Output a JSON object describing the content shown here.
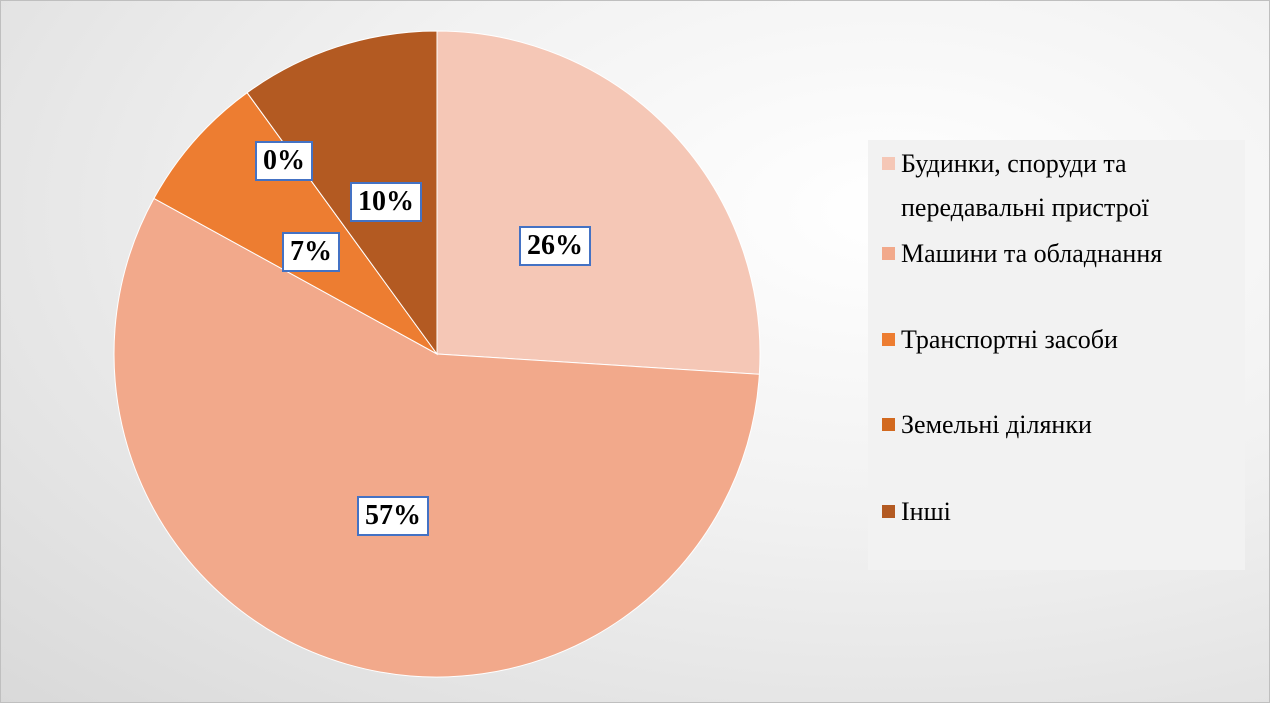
{
  "chart_data": {
    "type": "pie",
    "categories": [
      "Будинки, споруди та передавальні пристрої",
      "Машини та обладнання",
      "Транспортні засоби",
      "Земельні ділянки",
      "Інші"
    ],
    "values": [
      26,
      57,
      7,
      0,
      10
    ],
    "value_labels": [
      "26%",
      "57%",
      "7%",
      "0%",
      "10%"
    ],
    "colors": [
      "#f5c7b6",
      "#f2a98b",
      "#ed7d31",
      "#d2691f",
      "#b35a22"
    ],
    "legend": "right"
  }
}
